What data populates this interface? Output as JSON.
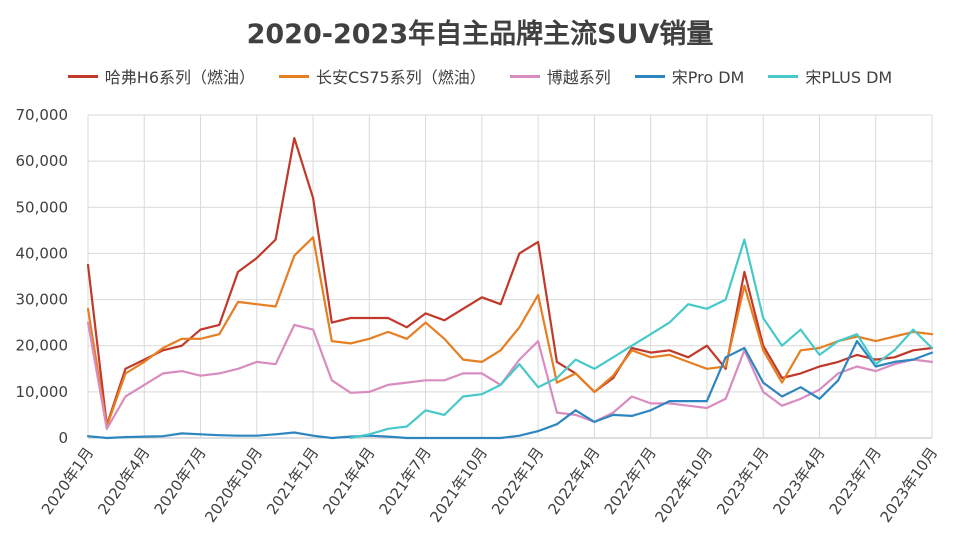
{
  "chart_data": {
    "type": "line",
    "title": "2020-2023年自主品牌主流SUV销量",
    "xlabel": "",
    "ylabel": "",
    "ylim": [
      0,
      70000
    ],
    "yticks": [
      "0",
      "10,000",
      "20,000",
      "30,000",
      "40,000",
      "50,000",
      "60,000",
      "70,000"
    ],
    "ytick_values": [
      0,
      10000,
      20000,
      30000,
      40000,
      50000,
      60000,
      70000
    ],
    "grid": true,
    "legend_position": "top",
    "x": [
      "2020年1月",
      "2020年2月",
      "2020年3月",
      "2020年4月",
      "2020年5月",
      "2020年6月",
      "2020年7月",
      "2020年8月",
      "2020年9月",
      "2020年10月",
      "2020年11月",
      "2020年12月",
      "2021年1月",
      "2021年2月",
      "2021年3月",
      "2021年4月",
      "2021年5月",
      "2021年6月",
      "2021年7月",
      "2021年8月",
      "2021年9月",
      "2021年10月",
      "2021年11月",
      "2021年12月",
      "2022年1月",
      "2022年2月",
      "2022年3月",
      "2022年4月",
      "2022年5月",
      "2022年6月",
      "2022年7月",
      "2022年8月",
      "2022年9月",
      "2022年10月",
      "2022年11月",
      "2022年12月",
      "2023年1月",
      "2023年2月",
      "2023年3月",
      "2023年4月",
      "2023年5月",
      "2023年6月",
      "2023年7月",
      "2023年8月",
      "2023年9月",
      "2023年10月"
    ],
    "xtick_labels": [
      "2020年1月",
      "2020年4月",
      "2020年7月",
      "2020年10月",
      "2021年1月",
      "2021年4月",
      "2021年7月",
      "2021年10月",
      "2022年1月",
      "2022年4月",
      "2022年7月",
      "2022年10月",
      "2023年1月",
      "2023年4月",
      "2023年7月",
      "2023年10月"
    ],
    "series": [
      {
        "name": "哈弗H6系列（燃油）",
        "color": "#c0392b",
        "values": [
          37500,
          2800,
          15000,
          17000,
          19000,
          20000,
          23500,
          24500,
          36000,
          39000,
          43000,
          65000,
          52000,
          25000,
          26000,
          26000,
          26000,
          24000,
          27000,
          25500,
          28000,
          30500,
          29000,
          40000,
          42500,
          16500,
          14000,
          10000,
          13000,
          19500,
          18500,
          19000,
          17500,
          20000,
          15000,
          36000,
          20000,
          13000,
          14000,
          15500,
          16500,
          18000,
          17000,
          17500,
          19000,
          19500
        ]
      },
      {
        "name": "长安CS75系列（燃油）",
        "color": "#e67e22",
        "values": [
          28000,
          2500,
          14000,
          16500,
          19500,
          21500,
          21500,
          22500,
          29500,
          29000,
          28500,
          39500,
          43500,
          21000,
          20500,
          21500,
          23000,
          21500,
          25000,
          21500,
          17000,
          16500,
          19000,
          24000,
          31000,
          12000,
          14000,
          10000,
          13500,
          19000,
          17500,
          18000,
          16500,
          15000,
          15500,
          33000,
          19000,
          12000,
          19000,
          19500,
          21000,
          22000,
          21000,
          22000,
          23000,
          22500
        ]
      },
      {
        "name": "博越系列",
        "color": "#d98cc0",
        "values": [
          25000,
          2000,
          9000,
          11500,
          14000,
          14500,
          13500,
          14000,
          15000,
          16500,
          16000,
          24500,
          23500,
          12500,
          9800,
          10000,
          11500,
          12000,
          12500,
          12500,
          14000,
          14000,
          11500,
          17000,
          21000,
          5500,
          5000,
          3500,
          5500,
          9000,
          7500,
          7500,
          7000,
          6500,
          8500,
          19000,
          10000,
          7000,
          8500,
          10500,
          14000,
          15500,
          14500,
          16000,
          17000,
          16500
        ]
      },
      {
        "name": "宋Pro DM",
        "color": "#2e86c1",
        "values": [
          400,
          0,
          200,
          300,
          400,
          1000,
          800,
          600,
          500,
          500,
          800,
          1200,
          500,
          0,
          300,
          500,
          300,
          0,
          0,
          0,
          0,
          0,
          0,
          500,
          1500,
          3000,
          6000,
          3500,
          5000,
          4800,
          6000,
          8000,
          8000,
          8000,
          17500,
          19500,
          12000,
          9000,
          11000,
          8500,
          12500,
          21000,
          15500,
          16500,
          17000,
          18500
        ]
      },
      {
        "name": "宋PLUS DM",
        "color": "#48c9c9",
        "values": [
          null,
          null,
          null,
          null,
          null,
          null,
          null,
          null,
          null,
          null,
          null,
          null,
          null,
          null,
          0,
          800,
          2000,
          2500,
          6000,
          5000,
          9000,
          9500,
          11500,
          16000,
          11000,
          13000,
          17000,
          15000,
          17500,
          20000,
          22500,
          25000,
          29000,
          28000,
          30000,
          43000,
          26000,
          20000,
          23500,
          18000,
          21000,
          22500,
          16000,
          19000,
          23500,
          19500
        ]
      }
    ]
  }
}
